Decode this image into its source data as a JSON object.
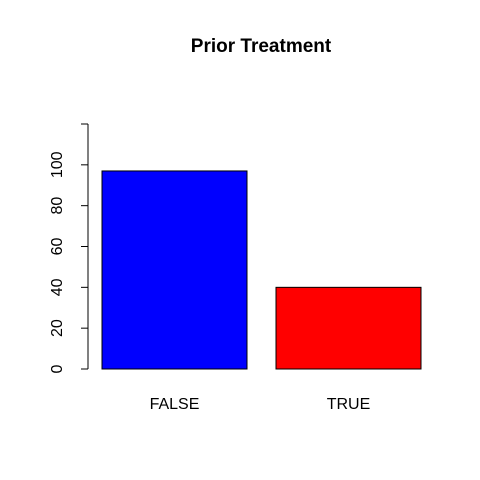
{
  "chart_data": {
    "type": "bar",
    "title": "Prior Treatment",
    "xlabel": "",
    "ylabel": "",
    "categories": [
      "FALSE",
      "TRUE"
    ],
    "values": [
      97,
      40
    ],
    "colors": [
      "#0000ff",
      "#ff0000"
    ],
    "ylim": [
      0,
      120
    ],
    "yticks": [
      0,
      20,
      40,
      60,
      80,
      100
    ],
    "ytick_labels": [
      "0",
      "20",
      "40",
      "60",
      "80",
      "100"
    ],
    "grid": false,
    "legend": "none"
  }
}
